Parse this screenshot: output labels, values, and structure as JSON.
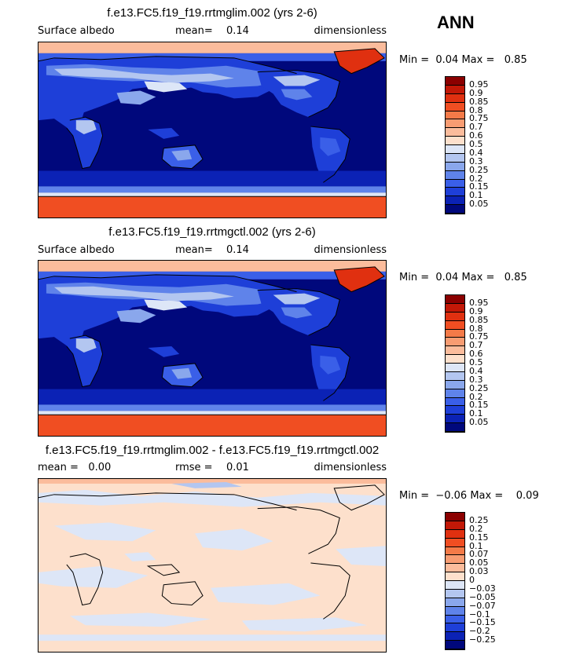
{
  "season": "ANN",
  "panels": [
    {
      "title": "f.e13.FC5.f19_f19.rrtmglim.002 (yrs 2-6)",
      "left_label": "Surface albedo",
      "mean_label": "mean=",
      "mean_value": "0.14",
      "right_label": "dimensionless",
      "min_label": "Min =",
      "min_value": "0.04",
      "max_label": "Max =",
      "max_value": "0.85",
      "colorbar": {
        "labels": [
          "0.95",
          "0.9",
          "0.85",
          "0.8",
          "0.75",
          "0.7",
          "0.6",
          "0.5",
          "0.4",
          "0.3",
          "0.25",
          "0.2",
          "0.15",
          "0.1",
          "0.05"
        ],
        "colors": [
          "#8b0000",
          "#c21807",
          "#e03010",
          "#f04e22",
          "#f47a48",
          "#f89c72",
          "#fbbc9c",
          "#fde0cc",
          "#dde6f7",
          "#b3c6f0",
          "#8aa7ec",
          "#5f83ea",
          "#3a5fe8",
          "#1e3fd8",
          "#0b22b5",
          "#00087c"
        ]
      }
    },
    {
      "title": "f.e13.FC5.f19_f19.rrtmgctl.002 (yrs 2-6)",
      "left_label": "Surface albedo",
      "mean_label": "mean=",
      "mean_value": "0.14",
      "right_label": "dimensionless",
      "min_label": "Min =",
      "min_value": "0.04",
      "max_label": "Max =",
      "max_value": "0.85",
      "colorbar": {
        "labels": [
          "0.95",
          "0.9",
          "0.85",
          "0.8",
          "0.75",
          "0.7",
          "0.6",
          "0.5",
          "0.4",
          "0.3",
          "0.25",
          "0.2",
          "0.15",
          "0.1",
          "0.05"
        ],
        "colors": [
          "#8b0000",
          "#c21807",
          "#e03010",
          "#f04e22",
          "#f47a48",
          "#f89c72",
          "#fbbc9c",
          "#fde0cc",
          "#dde6f7",
          "#b3c6f0",
          "#8aa7ec",
          "#5f83ea",
          "#3a5fe8",
          "#1e3fd8",
          "#0b22b5",
          "#00087c"
        ]
      }
    },
    {
      "title": "f.e13.FC5.f19_f19.rrtmglim.002 - f.e13.FC5.f19_f19.rrtmgctl.002",
      "left_label": "mean =",
      "mean_label": "rmse =",
      "mean_value": "0.01",
      "left_value": "0.00",
      "right_label": "dimensionless",
      "min_label": "Min =",
      "min_value": "−0.06",
      "max_label": "Max =",
      "max_value": "0.09",
      "colorbar": {
        "labels": [
          "0.25",
          "0.2",
          "0.15",
          "0.1",
          "0.07",
          "0.05",
          "0.03",
          "0",
          "−0.03",
          "−0.05",
          "−0.07",
          "−0.1",
          "−0.15",
          "−0.2",
          "−0.25"
        ],
        "colors": [
          "#8b0000",
          "#c21807",
          "#e03010",
          "#f04e22",
          "#f47a48",
          "#f89c72",
          "#fbbc9c",
          "#fde0cc",
          "#dde6f7",
          "#b3c6f0",
          "#8aa7ec",
          "#5f83ea",
          "#3a5fe8",
          "#1e3fd8",
          "#0b22b5",
          "#00087c"
        ]
      }
    }
  ]
}
